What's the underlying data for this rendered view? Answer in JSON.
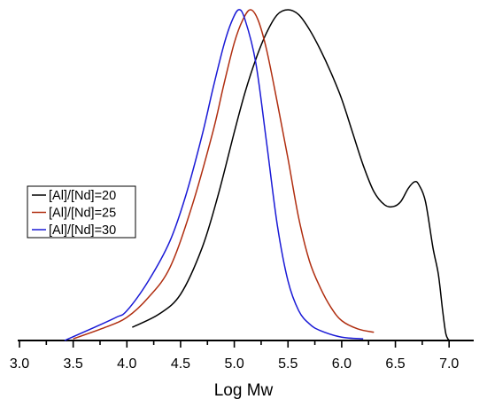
{
  "chart_data": {
    "type": "line",
    "title": "",
    "xlabel": "Log Mw",
    "ylabel": "",
    "xlim": [
      3.0,
      7.0
    ],
    "ylim": [
      0,
      1.0
    ],
    "x_ticks": [
      "3.0",
      "3.5",
      "4.0",
      "4.5",
      "5.0",
      "5.5",
      "6.0",
      "6.5",
      "7.0"
    ],
    "grid": false,
    "legend_position": "middle-left",
    "series": [
      {
        "name": "[Al]/[Nd]=20",
        "color": "#000000",
        "points": [
          [
            4.05,
            0.04
          ],
          [
            4.3,
            0.08
          ],
          [
            4.5,
            0.14
          ],
          [
            4.7,
            0.28
          ],
          [
            4.85,
            0.44
          ],
          [
            5.0,
            0.63
          ],
          [
            5.1,
            0.75
          ],
          [
            5.2,
            0.85
          ],
          [
            5.3,
            0.93
          ],
          [
            5.4,
            0.985
          ],
          [
            5.5,
            1.0
          ],
          [
            5.6,
            0.985
          ],
          [
            5.7,
            0.94
          ],
          [
            5.8,
            0.88
          ],
          [
            5.9,
            0.81
          ],
          [
            6.0,
            0.73
          ],
          [
            6.1,
            0.63
          ],
          [
            6.2,
            0.53
          ],
          [
            6.3,
            0.45
          ],
          [
            6.4,
            0.41
          ],
          [
            6.48,
            0.405
          ],
          [
            6.55,
            0.42
          ],
          [
            6.62,
            0.46
          ],
          [
            6.68,
            0.48
          ],
          [
            6.72,
            0.47
          ],
          [
            6.78,
            0.42
          ],
          [
            6.85,
            0.28
          ],
          [
            6.9,
            0.2
          ],
          [
            6.94,
            0.09
          ],
          [
            6.97,
            0.02
          ],
          [
            7.0,
            0.0
          ]
        ]
      },
      {
        "name": "[Al]/[Nd]=25",
        "color": "#b02e10",
        "points": [
          [
            3.5,
            0.005
          ],
          [
            3.8,
            0.04
          ],
          [
            4.0,
            0.07
          ],
          [
            4.2,
            0.13
          ],
          [
            4.4,
            0.22
          ],
          [
            4.6,
            0.4
          ],
          [
            4.8,
            0.63
          ],
          [
            4.9,
            0.77
          ],
          [
            5.0,
            0.9
          ],
          [
            5.08,
            0.97
          ],
          [
            5.15,
            1.0
          ],
          [
            5.22,
            0.97
          ],
          [
            5.3,
            0.88
          ],
          [
            5.4,
            0.72
          ],
          [
            5.5,
            0.55
          ],
          [
            5.6,
            0.37
          ],
          [
            5.7,
            0.24
          ],
          [
            5.8,
            0.16
          ],
          [
            5.9,
            0.1
          ],
          [
            6.0,
            0.06
          ],
          [
            6.15,
            0.035
          ],
          [
            6.3,
            0.025
          ]
        ]
      },
      {
        "name": "[Al]/[Nd]=30",
        "color": "#1a1ad6",
        "points": [
          [
            3.42,
            0.0
          ],
          [
            3.7,
            0.04
          ],
          [
            3.9,
            0.07
          ],
          [
            4.0,
            0.09
          ],
          [
            4.2,
            0.18
          ],
          [
            4.4,
            0.3
          ],
          [
            4.55,
            0.44
          ],
          [
            4.7,
            0.62
          ],
          [
            4.8,
            0.76
          ],
          [
            4.9,
            0.89
          ],
          [
            4.97,
            0.96
          ],
          [
            5.04,
            1.0
          ],
          [
            5.1,
            0.97
          ],
          [
            5.2,
            0.84
          ],
          [
            5.3,
            0.6
          ],
          [
            5.4,
            0.35
          ],
          [
            5.5,
            0.18
          ],
          [
            5.6,
            0.09
          ],
          [
            5.7,
            0.05
          ],
          [
            5.8,
            0.03
          ],
          [
            6.0,
            0.01
          ],
          [
            6.2,
            0.005
          ]
        ]
      }
    ]
  }
}
